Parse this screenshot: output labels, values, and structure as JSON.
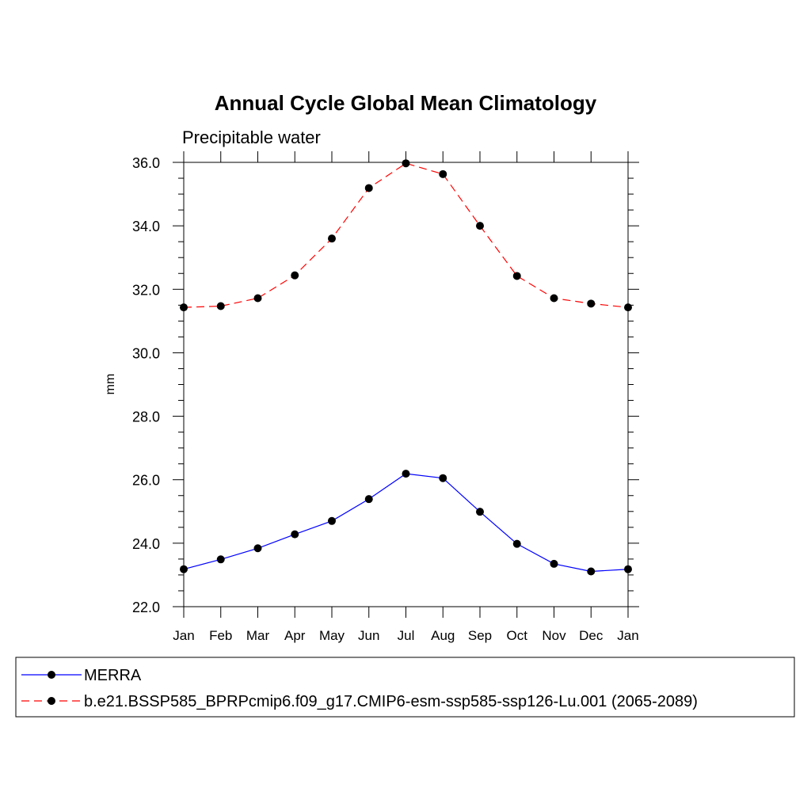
{
  "chart_data": {
    "type": "line",
    "title": "Annual Cycle Global Mean Climatology",
    "subtitle": "Precipitable water",
    "ylabel": "mm",
    "xlabel": "",
    "categories": [
      "Jan",
      "Feb",
      "Mar",
      "Apr",
      "May",
      "Jun",
      "Jul",
      "Aug",
      "Sep",
      "Oct",
      "Nov",
      "Dec",
      "Jan"
    ],
    "ylim": [
      22.0,
      36.0
    ],
    "yticks": [
      "22.0",
      "24.0",
      "26.0",
      "28.0",
      "30.0",
      "32.0",
      "34.0",
      "36.0"
    ],
    "grid": false,
    "legend_position": "bottom",
    "series": [
      {
        "name": "MERRA",
        "color": "#0000ff",
        "dash": "solid",
        "values": [
          23.18,
          23.49,
          23.84,
          24.28,
          24.7,
          25.39,
          26.19,
          26.05,
          24.99,
          23.98,
          23.35,
          23.11,
          23.18
        ]
      },
      {
        "name": "b.e21.BSSP585_BPRPcmip6.f09_g17.CMIP6-esm-ssp585-ssp126-Lu.001 (2065-2089)",
        "color": "#ff0000",
        "dash": "dashed",
        "values": [
          31.43,
          31.47,
          31.72,
          32.44,
          33.6,
          35.19,
          35.97,
          35.63,
          34.0,
          32.42,
          31.72,
          31.55,
          31.43
        ]
      }
    ]
  }
}
